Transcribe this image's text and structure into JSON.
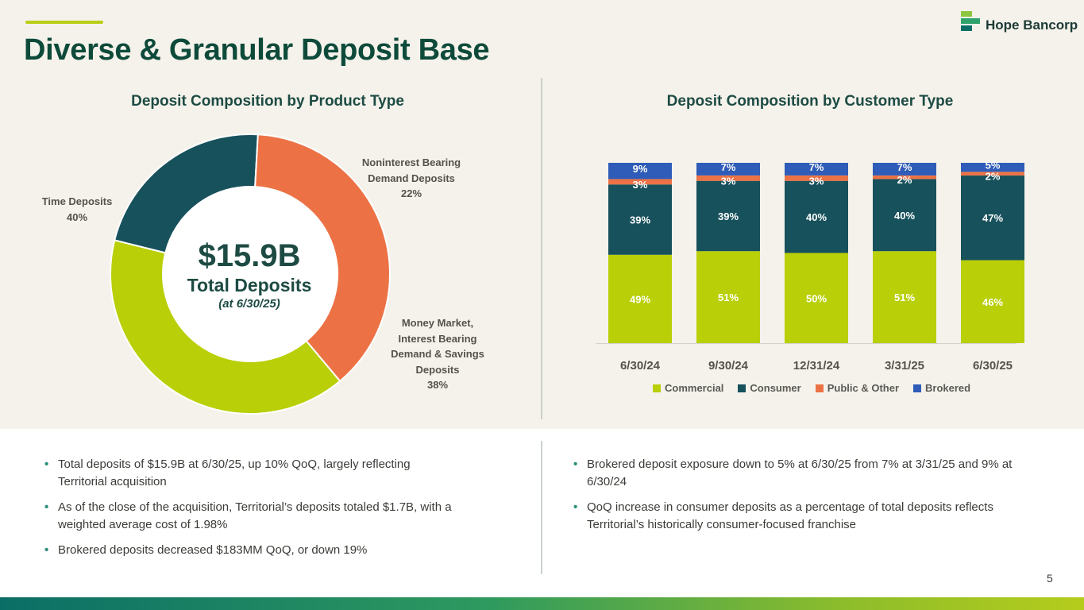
{
  "header": {
    "title": "Diverse & Granular Deposit Base",
    "logo_text": "Hope Bancorp"
  },
  "colors": {
    "commercial": "#b9cf08",
    "consumer": "#17515c",
    "public_other": "#ec7245",
    "brokered": "#2e5cb8",
    "title": "#0e4a3a"
  },
  "donut": {
    "center_value": "$15.9B",
    "center_label": "Total Deposits",
    "center_sub": "(at 6/30/25)"
  },
  "chart_data": [
    {
      "type": "pie",
      "title": "Deposit Composition by Product Type",
      "categories": [
        "Noninterest Bearing Demand Deposits",
        "Money Market, Interest Bearing Demand & Savings Deposits",
        "Time Deposits"
      ],
      "label_lines": [
        [
          "Noninterest Bearing",
          "Demand Deposits"
        ],
        [
          "Money Market,",
          "Interest Bearing",
          "Demand & Savings",
          "Deposits"
        ],
        [
          "Time Deposits"
        ]
      ],
      "values": [
        22,
        38,
        40
      ],
      "value_labels": [
        "22%",
        "38%",
        "40%"
      ],
      "colors": [
        "#17515c",
        "#ec7245",
        "#b9cf08"
      ],
      "donut": true
    },
    {
      "type": "bar",
      "stacked": true,
      "title": "Deposit Composition by Customer Type",
      "categories": [
        "6/30/24",
        "9/30/24",
        "12/31/24",
        "3/31/25",
        "6/30/25"
      ],
      "series": [
        {
          "name": "Commercial",
          "values": [
            49,
            51,
            50,
            51,
            46
          ],
          "labels": [
            "49%",
            "51%",
            "50%",
            "51%",
            "46%"
          ],
          "color": "#b9cf08"
        },
        {
          "name": "Consumer",
          "values": [
            39,
            39,
            40,
            40,
            47
          ],
          "labels": [
            "39%",
            "39%",
            "40%",
            "40%",
            "47%"
          ],
          "color": "#17515c"
        },
        {
          "name": "Public & Other",
          "values": [
            3,
            3,
            3,
            2,
            2
          ],
          "labels": [
            "3%",
            "3%",
            "3%",
            "2%",
            "2%"
          ],
          "color": "#ec7245"
        },
        {
          "name": "Brokered",
          "values": [
            9,
            7,
            7,
            7,
            5
          ],
          "labels": [
            "9%",
            "7%",
            "7%",
            "7%",
            "5%"
          ],
          "color": "#2e5cb8"
        }
      ],
      "ylim": [
        0,
        100
      ],
      "legend": "bottom",
      "grid": false
    }
  ],
  "bullets_left": [
    "Total deposits of $15.9B at 6/30/25, up 10% QoQ, largely reflecting Territorial acquisition",
    "As of the close of the acquisition, Territorial’s deposits totaled $1.7B, with a weighted average cost of 1.98%",
    "Brokered deposits decreased $183MM QoQ, or down 19%"
  ],
  "bullets_right": [
    "Brokered deposit exposure down to 5% at 6/30/25 from 7% at 3/31/25 and 9% at 6/30/24",
    "QoQ increase in consumer deposits as a percentage of total deposits reflects Territorial’s historically consumer-focused franchise"
  ],
  "page_number": "5"
}
